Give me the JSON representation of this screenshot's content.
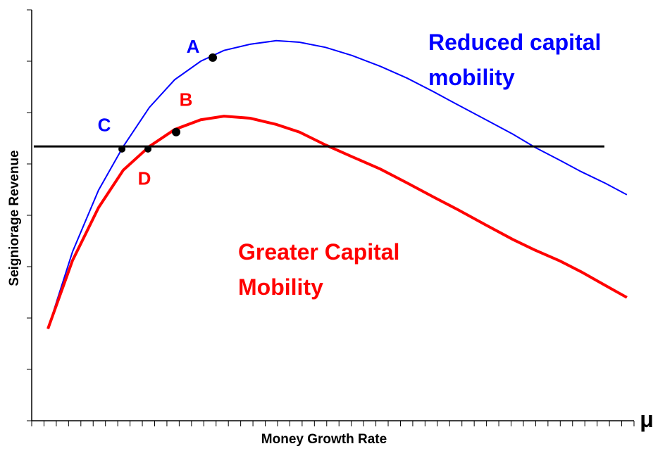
{
  "chart_data": {
    "type": "line",
    "y_label": "Seigniorage Revenue",
    "x_label": "Money Growth Rate",
    "x_symbol": "μ",
    "xlim": [
      0,
      49
    ],
    "ylim": [
      0,
      8
    ],
    "xticks": [
      0,
      1,
      2,
      3,
      4,
      5,
      6,
      7,
      8,
      9,
      10,
      11,
      12,
      13,
      14,
      15,
      16,
      17,
      18,
      19,
      20,
      21,
      22,
      23,
      24,
      25,
      26,
      27,
      28,
      29,
      30,
      31,
      32,
      33,
      34,
      35,
      36,
      37,
      38,
      39,
      40,
      41,
      42,
      43,
      44,
      45,
      46,
      47,
      48,
      49
    ],
    "yticks": [
      0,
      1,
      2,
      3,
      4,
      5,
      6,
      7,
      8
    ],
    "x": [
      1.32,
      3.32,
      5.44,
      7.45,
      9.57,
      11.63,
      13.75,
      15.64,
      17.77,
      19.89,
      21.78,
      23.9,
      26.07,
      28.37,
      30.54,
      32.66,
      34.67,
      36.96,
      39.14,
      40.97,
      42.98,
      44.7,
      46.7,
      48.42
    ],
    "series": [
      {
        "name": "Reduced capital mobility",
        "color": "#0000ff",
        "width": 2,
        "values": [
          1.79,
          3.29,
          4.49,
          5.34,
          6.1,
          6.64,
          7.0,
          7.21,
          7.33,
          7.4,
          7.37,
          7.27,
          7.11,
          6.9,
          6.67,
          6.41,
          6.15,
          5.86,
          5.58,
          5.32,
          5.07,
          4.85,
          4.62,
          4.4
        ]
      },
      {
        "name": "Greater Capital Mobility",
        "color": "#ff0000",
        "width": 4,
        "values": [
          1.79,
          3.12,
          4.15,
          4.88,
          5.34,
          5.67,
          5.86,
          5.93,
          5.89,
          5.77,
          5.62,
          5.37,
          5.14,
          4.9,
          4.63,
          4.36,
          4.11,
          3.81,
          3.53,
          3.32,
          3.11,
          2.9,
          2.63,
          2.4
        ]
      }
    ],
    "hline": {
      "y": 5.34,
      "x": [
        0.17,
        46.59
      ],
      "color": "#000000"
    },
    "points": [
      {
        "label": "A",
        "x": 14.73,
        "y": 7.07,
        "color": "#0000ff"
      },
      {
        "label": "B",
        "x": 11.75,
        "y": 5.62,
        "color": "#ff0000"
      },
      {
        "label": "C",
        "x": 7.34,
        "y": 5.29,
        "color": "#0000ff"
      },
      {
        "label": "D",
        "x": 9.46,
        "y": 5.29,
        "color": "#ff0000"
      }
    ]
  }
}
